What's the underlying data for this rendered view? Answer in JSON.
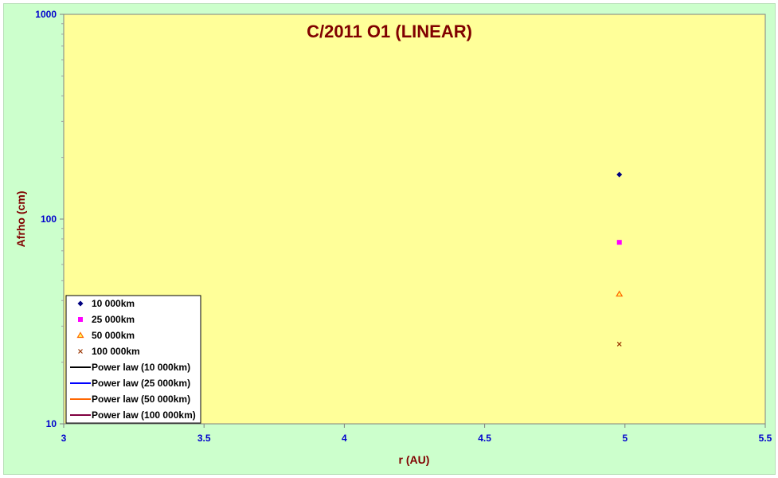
{
  "chart_data": {
    "type": "scatter",
    "title": "C/2011 O1 (LINEAR)",
    "xlabel": "r (AU)",
    "ylabel": "Afrho (cm)",
    "xlim": [
      3,
      5.5
    ],
    "ylim": [
      10,
      1000
    ],
    "yscale": "log",
    "x_ticks": [
      "3",
      "3.5",
      "4",
      "4.5",
      "5",
      "5.5"
    ],
    "y_ticks": [
      "10",
      "100",
      "1000"
    ],
    "grid": false,
    "legend_position": "bottom-left",
    "plot_background": "#ffff99",
    "figure_background": "#ccffcc",
    "series": [
      {
        "name": "10 000km",
        "marker": "diamond",
        "color": "#000080",
        "points": [
          [
            4.98,
            165
          ]
        ]
      },
      {
        "name": "25 000km",
        "marker": "square",
        "color": "#ff00ff",
        "points": [
          [
            4.98,
            77
          ]
        ]
      },
      {
        "name": "50 000km",
        "marker": "triangle",
        "color": "#ff6600",
        "points": [
          [
            4.98,
            43
          ]
        ]
      },
      {
        "name": "100 000km",
        "marker": "x",
        "color": "#993300",
        "points": [
          [
            4.98,
            24.5
          ]
        ]
      },
      {
        "name": "Power law (10 000km)",
        "marker": "line",
        "color": "#000000",
        "points": []
      },
      {
        "name": "Power law (25 000km)",
        "marker": "line",
        "color": "#0000ff",
        "points": []
      },
      {
        "name": "Power law (50 000km)",
        "marker": "line",
        "color": "#ff6600",
        "points": []
      },
      {
        "name": "Power law (100 000km)",
        "marker": "line",
        "color": "#800040",
        "points": []
      }
    ]
  }
}
